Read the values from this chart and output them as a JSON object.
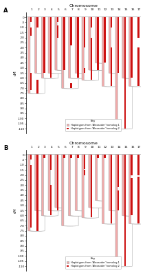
{
  "title": "Chromosome",
  "ylabel": "cM",
  "panel_labels": [
    "A",
    "B"
  ],
  "chromosomes": [
    1,
    2,
    3,
    4,
    5,
    6,
    7,
    8,
    9,
    10,
    11,
    12,
    13,
    14,
    15,
    16,
    17
  ],
  "color_h1": "#F2AAAA",
  "color_h2": "#CC1111",
  "color_bg": "white",
  "color_outline": "#AAAAAA",
  "ytick_vals": [
    0,
    -5,
    -10,
    -15,
    -20,
    -25,
    -30,
    -35,
    -40,
    -45,
    -50,
    -55,
    -60,
    -65,
    -70,
    -75,
    -80,
    -85,
    -90,
    -95,
    -100,
    -105,
    -110
  ],
  "ytick_labels": [
    "0",
    "-5",
    "-10",
    "-15",
    "-20",
    "-25",
    "-30",
    "-35",
    "-40",
    "-45",
    "-50",
    "-55",
    "-60",
    "-65",
    "-70",
    "-75",
    "-80",
    "-85",
    "-90",
    "-95",
    "-100",
    "-105",
    "-110"
  ],
  "panel_A": {
    "chr_len": [
      72,
      75,
      55,
      60,
      55,
      52,
      70,
      60,
      55,
      62,
      52,
      45,
      68,
      55,
      110,
      60,
      68
    ],
    "h2_segs": [
      [
        [
          0,
          -5
        ],
        [
          -10,
          -18
        ],
        [
          -55,
          -72
        ]
      ],
      [
        [
          0,
          -10
        ],
        [
          -62,
          -75
        ]
      ],
      [
        [
          0,
          -55
        ]
      ],
      [
        [
          0,
          -60
        ]
      ],
      [
        [
          0,
          -5
        ],
        [
          -8,
          -20
        ]
      ],
      [
        [
          0,
          -52
        ]
      ],
      [
        [
          0,
          -28
        ],
        [
          -65,
          -70
        ]
      ],
      [
        [
          0,
          -60
        ]
      ],
      [
        [
          0,
          -30
        ],
        [
          -50,
          -55
        ]
      ],
      [
        [
          0,
          -10
        ],
        [
          -20,
          -62
        ]
      ],
      [
        [
          0,
          -52
        ]
      ],
      [
        [
          0,
          -45
        ]
      ],
      [
        [
          0,
          -10
        ],
        [
          -30,
          -68
        ]
      ],
      [
        [
          0,
          -55
        ]
      ],
      [
        [
          0,
          -110
        ]
      ],
      [
        [
          0,
          -60
        ]
      ],
      [
        [
          0,
          -20
        ],
        [
          -30,
          -68
        ]
      ]
    ]
  },
  "panel_B": {
    "chr_len": [
      72,
      75,
      55,
      60,
      55,
      52,
      70,
      60,
      55,
      62,
      52,
      45,
      68,
      55,
      110,
      60,
      68
    ],
    "h2_segs": [
      [
        [
          0,
          -5
        ],
        [
          -10,
          -72
        ]
      ],
      [
        [
          0,
          -75
        ]
      ],
      [
        [
          0,
          -3
        ]
      ],
      [
        [
          0,
          -15
        ],
        [
          -30,
          -60
        ]
      ],
      [
        [
          0,
          -55
        ]
      ],
      [
        [
          0,
          -3
        ]
      ],
      [
        [
          0,
          -3
        ]
      ],
      [
        [
          0,
          -3
        ]
      ],
      [
        [
          0,
          -14
        ],
        [
          -15,
          -20
        ]
      ],
      [
        [
          0,
          -62
        ]
      ],
      [
        [
          0,
          -3
        ]
      ],
      [
        [
          0,
          -3
        ]
      ],
      [
        [
          0,
          -68
        ]
      ],
      [
        [
          0,
          -32
        ],
        [
          -35,
          -55
        ]
      ],
      [
        [
          0,
          -110
        ]
      ],
      [
        [
          0,
          -20
        ],
        [
          -23,
          -60
        ]
      ],
      [
        [
          0,
          -20
        ],
        [
          -22,
          -68
        ]
      ]
    ]
  },
  "key_text": [
    "Haplotypes from 'Alexander' homolog 1",
    "Haplotypes from 'Alexander' homolog 2"
  ]
}
